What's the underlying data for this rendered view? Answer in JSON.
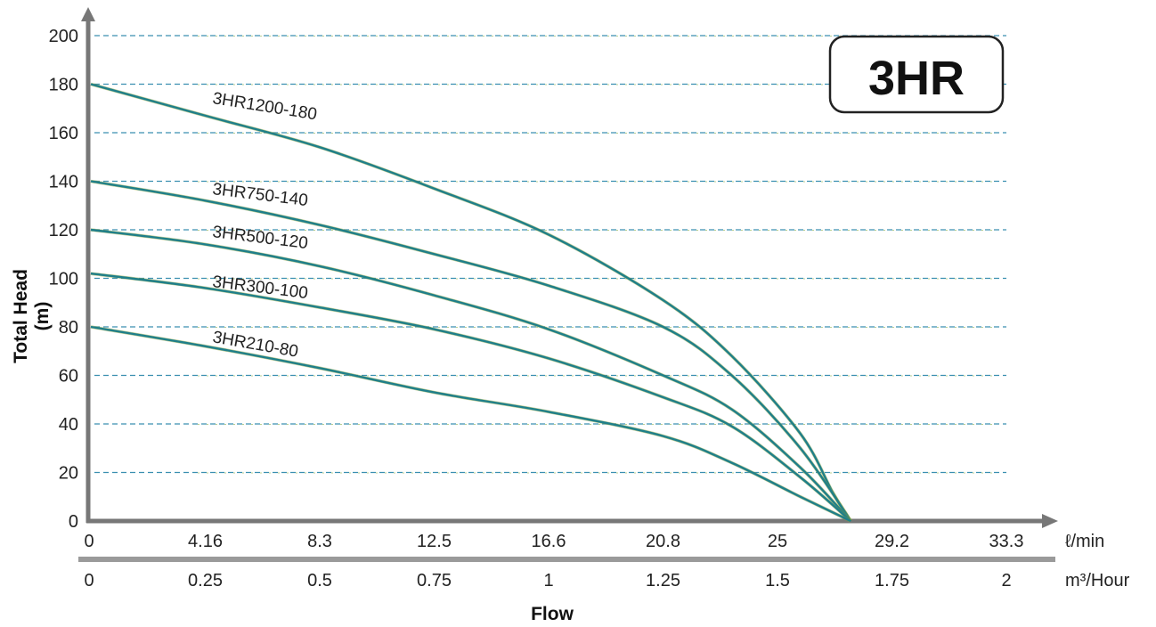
{
  "chart_data": {
    "type": "line",
    "badge": "3HR",
    "ylabel_line1": "Total Head",
    "ylabel_line2": "(m)",
    "xlabel": "Flow",
    "ylim": [
      0,
      200
    ],
    "y_ticks": [
      "0",
      "20",
      "40",
      "60",
      "80",
      "100",
      "120",
      "140",
      "160",
      "180",
      "200"
    ],
    "x_ticks_lmin": [
      "0",
      "4.16",
      "8.3",
      "12.5",
      "16.6",
      "20.8",
      "25",
      "29.2",
      "33.3"
    ],
    "x_ticks_m3h": [
      "0",
      "0.25",
      "0.5",
      "0.75",
      "1",
      "1.25",
      "1.5",
      "1.75",
      "2"
    ],
    "x_unit_lmin": "ℓ/min",
    "x_unit_m3h": "m³/Hour",
    "x_axis": "m³/Hour",
    "xlim": [
      0,
      2
    ],
    "grid": true,
    "series": [
      {
        "name": "3HR1200-180",
        "x": [
          0,
          0.25,
          0.5,
          0.75,
          1.0,
          1.25,
          1.4,
          1.55,
          1.62,
          1.65,
          1.66
        ],
        "y": [
          180,
          167,
          154,
          137,
          118,
          91,
          68,
          36,
          12,
          3,
          0
        ]
      },
      {
        "name": "3HR750-140",
        "x": [
          0,
          0.25,
          0.5,
          0.75,
          1.0,
          1.25,
          1.4,
          1.55,
          1.66
        ],
        "y": [
          140,
          132,
          122,
          110,
          97,
          80,
          60,
          30,
          0
        ]
      },
      {
        "name": "3HR500-120",
        "x": [
          0,
          0.25,
          0.5,
          0.75,
          1.0,
          1.25,
          1.4,
          1.55,
          1.66
        ],
        "y": [
          120,
          114,
          105,
          93,
          79,
          60,
          46,
          22,
          0
        ]
      },
      {
        "name": "3HR300-100",
        "x": [
          0,
          0.25,
          0.5,
          0.75,
          1.0,
          1.25,
          1.4,
          1.55,
          1.66
        ],
        "y": [
          102,
          96,
          88,
          79,
          67,
          51,
          39,
          18,
          0
        ]
      },
      {
        "name": "3HR210-80",
        "x": [
          0,
          0.25,
          0.5,
          0.75,
          1.0,
          1.25,
          1.4,
          1.55,
          1.66
        ],
        "y": [
          80,
          72,
          63,
          53,
          45,
          35,
          24,
          10,
          0
        ]
      }
    ],
    "colors": {
      "curve": "#1f7f8a",
      "curve_highlight": "#8da33a",
      "grid_blue": "#3a8fb0",
      "grid_green": "#8fb24a",
      "axis": "#777777"
    }
  }
}
